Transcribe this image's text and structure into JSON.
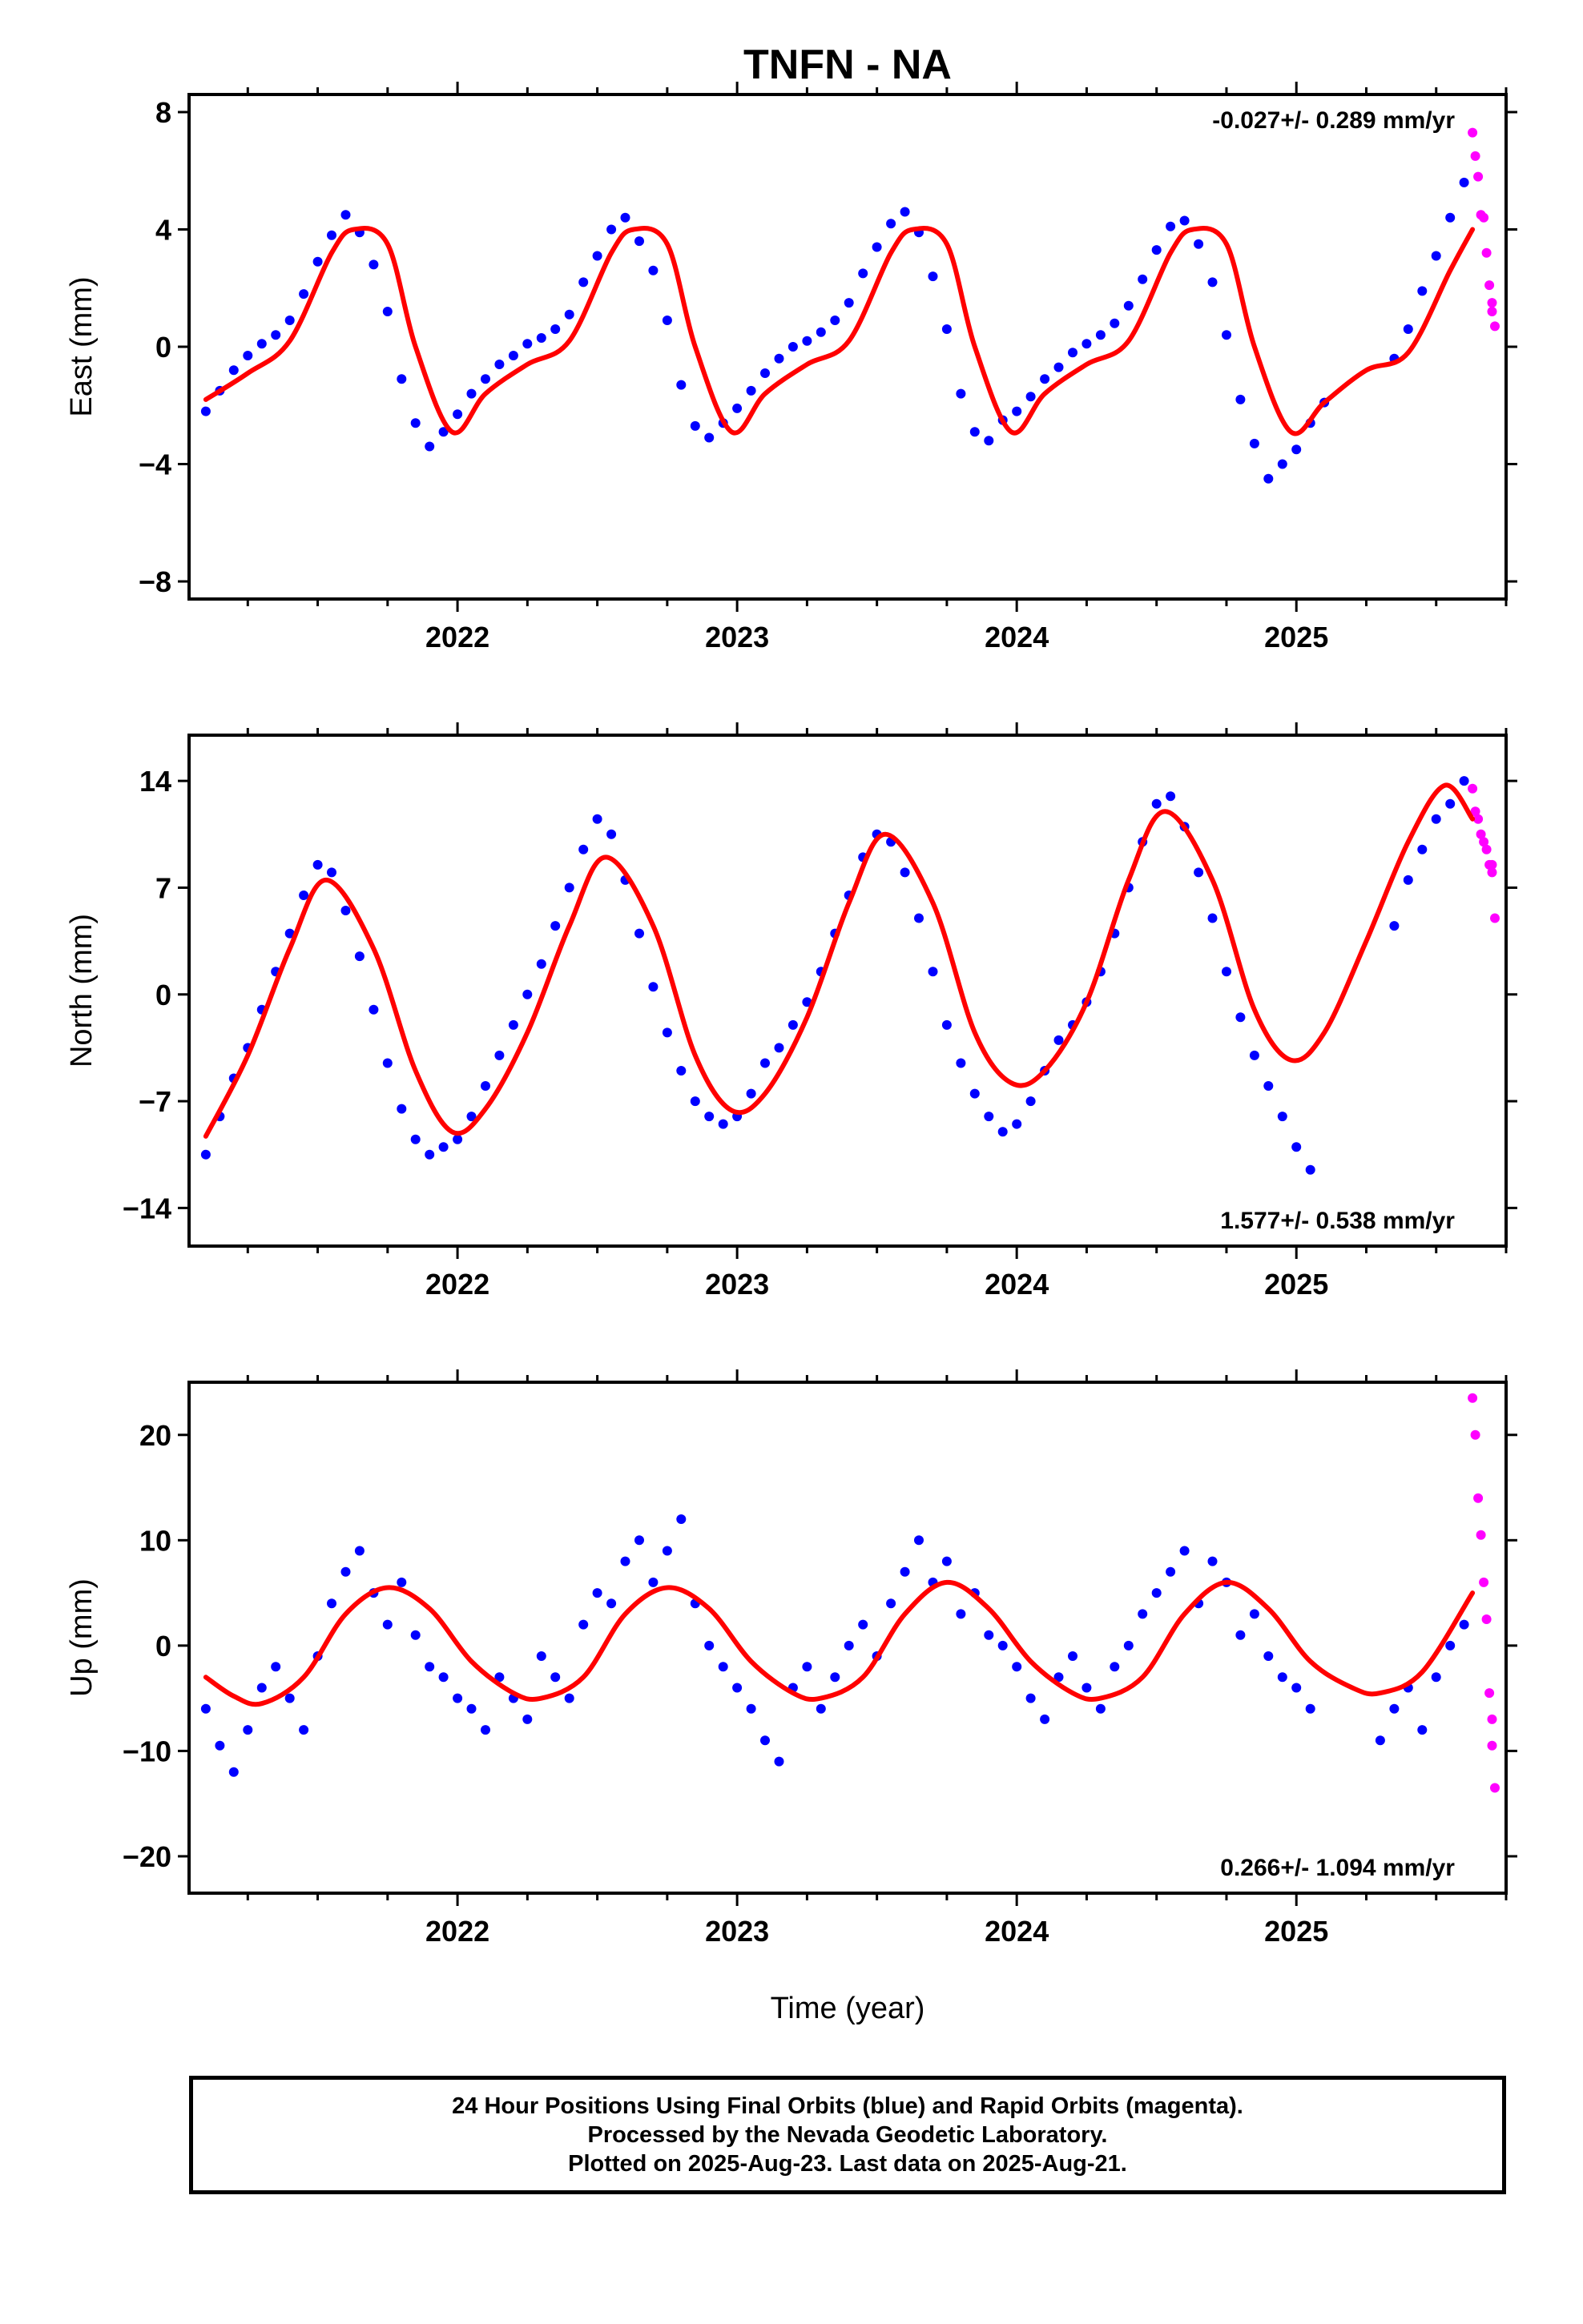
{
  "title": "TNFN - NA",
  "xlabel": "Time (year)",
  "caption": {
    "line1": "24 Hour Positions Using Final Orbits (blue) and Rapid Orbits (magenta).",
    "line2": "Processed by the Nevada Geodetic Laboratory.",
    "line3": "Plotted on 2025-Aug-23. Last data on 2025-Aug-21."
  },
  "colors": {
    "final": "#0000ff",
    "rapid": "#ff00ff",
    "model": "#ff0000",
    "axis": "#000000"
  },
  "chart_data": [
    {
      "type": "scatter",
      "ylabel": "East (mm)",
      "rate": "-0.027+/- 0.289 mm/yr",
      "xlim": [
        2021.04,
        2025.75
      ],
      "ylim": [
        -8.6,
        8.6
      ],
      "yticks": [
        -8,
        -4,
        0,
        4,
        8
      ],
      "ytick_labels": [
        "−8",
        "−4",
        "0",
        "4",
        "8"
      ],
      "xticks": [
        2022,
        2023,
        2024,
        2025
      ],
      "xtick_labels": [
        "2022",
        "2023",
        "2024",
        "2025"
      ],
      "model": {
        "name": "seasonal fit",
        "x": [
          2021.1,
          2021.25,
          2021.4,
          2021.55,
          2021.63,
          2021.75,
          2021.85,
          2021.98,
          2022.1,
          2022.25,
          2022.4,
          2022.55,
          2022.63,
          2022.75,
          2022.85,
          2022.98,
          2023.1,
          2023.25,
          2023.4,
          2023.55,
          2023.63,
          2023.75,
          2023.85,
          2023.98,
          2024.1,
          2024.25,
          2024.4,
          2024.55,
          2024.63,
          2024.75,
          2024.85,
          2024.98,
          2025.1,
          2025.25,
          2025.4,
          2025.55,
          2025.63
        ],
        "y": [
          -1.8,
          -0.9,
          0.2,
          3.2,
          4.0,
          3.5,
          0.0,
          -2.9,
          -1.6,
          -0.6,
          0.2,
          3.2,
          4.0,
          3.5,
          0.0,
          -2.9,
          -1.6,
          -0.6,
          0.2,
          3.2,
          4.0,
          3.5,
          0.0,
          -2.9,
          -1.6,
          -0.6,
          0.2,
          3.2,
          4.0,
          3.5,
          0.0,
          -2.9,
          -1.9,
          -0.8,
          -0.2,
          2.6,
          4.0
        ]
      },
      "final_points": {
        "x": [
          2021.1,
          2021.15,
          2021.2,
          2021.25,
          2021.3,
          2021.35,
          2021.4,
          2021.45,
          2021.5,
          2021.55,
          2021.6,
          2021.65,
          2021.7,
          2021.75,
          2021.8,
          2021.85,
          2021.9,
          2021.95,
          2022.0,
          2022.05,
          2022.1,
          2022.15,
          2022.2,
          2022.25,
          2022.3,
          2022.35,
          2022.4,
          2022.45,
          2022.5,
          2022.55,
          2022.6,
          2022.65,
          2022.7,
          2022.75,
          2022.8,
          2022.85,
          2022.9,
          2022.95,
          2023.0,
          2023.05,
          2023.1,
          2023.15,
          2023.2,
          2023.25,
          2023.3,
          2023.35,
          2023.4,
          2023.45,
          2023.5,
          2023.55,
          2023.6,
          2023.65,
          2023.7,
          2023.75,
          2023.8,
          2023.85,
          2023.9,
          2023.95,
          2024.0,
          2024.05,
          2024.1,
          2024.15,
          2024.2,
          2024.25,
          2024.3,
          2024.35,
          2024.4,
          2024.45,
          2024.5,
          2024.55,
          2024.6,
          2024.65,
          2024.7,
          2024.75,
          2024.8,
          2024.85,
          2024.9,
          2024.95,
          2025.0,
          2025.05,
          2025.1,
          2025.35,
          2025.4,
          2025.45,
          2025.5,
          2025.55,
          2025.6
        ],
        "y": [
          -2.2,
          -1.5,
          -0.8,
          -0.3,
          0.1,
          0.4,
          0.9,
          1.8,
          2.9,
          3.8,
          4.5,
          3.9,
          2.8,
          1.2,
          -1.1,
          -2.6,
          -3.4,
          -2.9,
          -2.3,
          -1.6,
          -1.1,
          -0.6,
          -0.3,
          0.1,
          0.3,
          0.6,
          1.1,
          2.2,
          3.1,
          4.0,
          4.4,
          3.6,
          2.6,
          0.9,
          -1.3,
          -2.7,
          -3.1,
          -2.6,
          -2.1,
          -1.5,
          -0.9,
          -0.4,
          0.0,
          0.2,
          0.5,
          0.9,
          1.5,
          2.5,
          3.4,
          4.2,
          4.6,
          3.9,
          2.4,
          0.6,
          -1.6,
          -2.9,
          -3.2,
          -2.5,
          -2.2,
          -1.7,
          -1.1,
          -0.7,
          -0.2,
          0.1,
          0.4,
          0.8,
          1.4,
          2.3,
          3.3,
          4.1,
          4.3,
          3.5,
          2.2,
          0.4,
          -1.8,
          -3.3,
          -4.5,
          -4.0,
          -3.5,
          -2.6,
          -1.9,
          -0.4,
          0.6,
          1.9,
          3.1,
          4.4,
          5.6
        ]
      },
      "rapid_points": {
        "x": [
          2025.63,
          2025.64,
          2025.65,
          2025.66,
          2025.67,
          2025.68,
          2025.69,
          2025.7,
          2025.7,
          2025.71
        ],
        "y": [
          7.3,
          6.5,
          5.8,
          4.5,
          4.4,
          3.2,
          2.1,
          1.5,
          1.2,
          0.7
        ]
      }
    },
    {
      "type": "scatter",
      "ylabel": "North (mm)",
      "rate": "1.577+/- 0.538 mm/yr",
      "xlim": [
        2021.04,
        2025.75
      ],
      "ylim": [
        -16.5,
        17.0
      ],
      "yticks": [
        -14,
        -7,
        0,
        7,
        14
      ],
      "ytick_labels": [
        "−14",
        "−7",
        "0",
        "7",
        "14"
      ],
      "xticks": [
        2022,
        2023,
        2024,
        2025
      ],
      "xtick_labels": [
        "2022",
        "2023",
        "2024",
        "2025"
      ],
      "model": {
        "name": "seasonal fit",
        "x": [
          2021.1,
          2021.25,
          2021.4,
          2021.53,
          2021.7,
          2021.85,
          2021.98,
          2022.1,
          2022.25,
          2022.4,
          2022.53,
          2022.7,
          2022.85,
          2022.98,
          2023.1,
          2023.25,
          2023.4,
          2023.53,
          2023.7,
          2023.85,
          2023.98,
          2024.1,
          2024.25,
          2024.4,
          2024.53,
          2024.7,
          2024.85,
          2024.98,
          2025.1,
          2025.25,
          2025.4,
          2025.53,
          2025.63
        ],
        "y": [
          -9.3,
          -4.0,
          3.0,
          7.5,
          3.0,
          -5.0,
          -9.0,
          -7.5,
          -2.5,
          4.5,
          9.0,
          4.5,
          -4.0,
          -7.6,
          -6.5,
          -1.5,
          6.0,
          10.5,
          6.0,
          -2.5,
          -5.8,
          -5.0,
          -0.5,
          7.5,
          12.0,
          7.5,
          -1.0,
          -4.3,
          -2.5,
          3.5,
          10.0,
          13.7,
          11.5
        ]
      },
      "final_points": {
        "x": [
          2021.1,
          2021.15,
          2021.2,
          2021.25,
          2021.3,
          2021.35,
          2021.4,
          2021.45,
          2021.5,
          2021.55,
          2021.6,
          2021.65,
          2021.7,
          2021.75,
          2021.8,
          2021.85,
          2021.9,
          2021.95,
          2022.0,
          2022.05,
          2022.1,
          2022.15,
          2022.2,
          2022.25,
          2022.3,
          2022.35,
          2022.4,
          2022.45,
          2022.5,
          2022.55,
          2022.6,
          2022.65,
          2022.7,
          2022.75,
          2022.8,
          2022.85,
          2022.9,
          2022.95,
          2023.0,
          2023.05,
          2023.1,
          2023.15,
          2023.2,
          2023.25,
          2023.3,
          2023.35,
          2023.4,
          2023.45,
          2023.5,
          2023.55,
          2023.6,
          2023.65,
          2023.7,
          2023.75,
          2023.8,
          2023.85,
          2023.9,
          2023.95,
          2024.0,
          2024.05,
          2024.1,
          2024.15,
          2024.2,
          2024.25,
          2024.3,
          2024.35,
          2024.4,
          2024.45,
          2024.5,
          2024.55,
          2024.6,
          2024.65,
          2024.7,
          2024.75,
          2024.8,
          2024.85,
          2024.9,
          2024.95,
          2025.0,
          2025.05,
          2025.35,
          2025.4,
          2025.45,
          2025.5,
          2025.55,
          2025.6
        ],
        "y": [
          -10.5,
          -8.0,
          -5.5,
          -3.5,
          -1.0,
          1.5,
          4.0,
          6.5,
          8.5,
          8.0,
          5.5,
          2.5,
          -1.0,
          -4.5,
          -7.5,
          -9.5,
          -10.5,
          -10.0,
          -9.5,
          -8.0,
          -6.0,
          -4.0,
          -2.0,
          0.0,
          2.0,
          4.5,
          7.0,
          9.5,
          11.5,
          10.5,
          7.5,
          4.0,
          0.5,
          -2.5,
          -5.0,
          -7.0,
          -8.0,
          -8.5,
          -8.0,
          -6.5,
          -4.5,
          -3.5,
          -2.0,
          -0.5,
          1.5,
          4.0,
          6.5,
          9.0,
          10.5,
          10.0,
          8.0,
          5.0,
          1.5,
          -2.0,
          -4.5,
          -6.5,
          -8.0,
          -9.0,
          -8.5,
          -7.0,
          -5.0,
          -3.0,
          -2.0,
          -0.5,
          1.5,
          4.0,
          7.0,
          10.0,
          12.5,
          13.0,
          11.0,
          8.0,
          5.0,
          1.5,
          -1.5,
          -4.0,
          -6.0,
          -8.0,
          -10.0,
          -11.5,
          4.5,
          7.5,
          9.5,
          11.5,
          12.5,
          14.0
        ]
      },
      "rapid_points": {
        "x": [
          2025.63,
          2025.64,
          2025.65,
          2025.66,
          2025.67,
          2025.68,
          2025.69,
          2025.7,
          2025.7,
          2025.71
        ],
        "y": [
          13.5,
          12.0,
          11.5,
          10.5,
          10.0,
          9.5,
          8.5,
          8.5,
          8.0,
          5.0
        ]
      }
    },
    {
      "type": "scatter",
      "ylabel": "Up (mm)",
      "rate": "0.266+/- 1.094 mm/yr",
      "xlim": [
        2021.04,
        2025.75
      ],
      "ylim": [
        -23.5,
        25.0
      ],
      "yticks": [
        -20,
        -10,
        0,
        10,
        20
      ],
      "ytick_labels": [
        "−20",
        "−10",
        "0",
        "10",
        "20"
      ],
      "xticks": [
        2022,
        2023,
        2024,
        2025
      ],
      "xtick_labels": [
        "2022",
        "2023",
        "2024",
        "2025"
      ],
      "model": {
        "name": "seasonal fit",
        "x": [
          2021.1,
          2021.2,
          2021.3,
          2021.45,
          2021.6,
          2021.75,
          2021.9,
          2022.05,
          2022.2,
          2022.3,
          2022.45,
          2022.6,
          2022.75,
          2022.9,
          2023.05,
          2023.2,
          2023.3,
          2023.45,
          2023.6,
          2023.75,
          2023.9,
          2024.05,
          2024.2,
          2024.3,
          2024.45,
          2024.6,
          2024.75,
          2024.9,
          2025.05,
          2025.2,
          2025.3,
          2025.45,
          2025.63
        ],
        "y": [
          -3.0,
          -4.8,
          -5.5,
          -3.0,
          3.0,
          5.5,
          3.5,
          -1.5,
          -4.5,
          -5.0,
          -3.0,
          3.0,
          5.5,
          3.5,
          -1.5,
          -4.5,
          -5.0,
          -3.0,
          3.0,
          6.0,
          3.5,
          -1.5,
          -4.5,
          -5.0,
          -3.0,
          3.0,
          6.0,
          3.5,
          -1.5,
          -4.0,
          -4.5,
          -2.5,
          5.0
        ]
      },
      "final_points": {
        "x": [
          2021.1,
          2021.15,
          2021.2,
          2021.25,
          2021.3,
          2021.35,
          2021.4,
          2021.45,
          2021.5,
          2021.55,
          2021.6,
          2021.65,
          2021.7,
          2021.75,
          2021.8,
          2021.85,
          2021.9,
          2021.95,
          2022.0,
          2022.05,
          2022.1,
          2022.15,
          2022.2,
          2022.25,
          2022.3,
          2022.35,
          2022.4,
          2022.45,
          2022.5,
          2022.55,
          2022.6,
          2022.65,
          2022.7,
          2022.75,
          2022.8,
          2022.85,
          2022.9,
          2022.95,
          2023.0,
          2023.05,
          2023.1,
          2023.15,
          2023.2,
          2023.25,
          2023.3,
          2023.35,
          2023.4,
          2023.45,
          2023.5,
          2023.55,
          2023.6,
          2023.65,
          2023.7,
          2023.75,
          2023.8,
          2023.85,
          2023.9,
          2023.95,
          2024.0,
          2024.05,
          2024.1,
          2024.15,
          2024.2,
          2024.25,
          2024.3,
          2024.35,
          2024.4,
          2024.45,
          2024.5,
          2024.55,
          2024.6,
          2024.65,
          2024.7,
          2024.75,
          2024.8,
          2024.85,
          2024.9,
          2024.95,
          2025.0,
          2025.05,
          2025.3,
          2025.35,
          2025.4,
          2025.45,
          2025.5,
          2025.55,
          2025.6
        ],
        "y": [
          -6.0,
          -9.5,
          -12.0,
          -8.0,
          -4.0,
          -2.0,
          -5.0,
          -8.0,
          -1.0,
          4.0,
          7.0,
          9.0,
          5.0,
          2.0,
          6.0,
          1.0,
          -2.0,
          -3.0,
          -5.0,
          -6.0,
          -8.0,
          -3.0,
          -5.0,
          -7.0,
          -1.0,
          -3.0,
          -5.0,
          2.0,
          5.0,
          4.0,
          8.0,
          10.0,
          6.0,
          9.0,
          12.0,
          4.0,
          0.0,
          -2.0,
          -4.0,
          -6.0,
          -9.0,
          -11.0,
          -4.0,
          -2.0,
          -6.0,
          -3.0,
          0.0,
          2.0,
          -1.0,
          4.0,
          7.0,
          10.0,
          6.0,
          8.0,
          3.0,
          5.0,
          1.0,
          0.0,
          -2.0,
          -5.0,
          -7.0,
          -3.0,
          -1.0,
          -4.0,
          -6.0,
          -2.0,
          0.0,
          3.0,
          5.0,
          7.0,
          9.0,
          4.0,
          8.0,
          6.0,
          1.0,
          3.0,
          -1.0,
          -3.0,
          -4.0,
          -6.0,
          -9.0,
          -6.0,
          -4.0,
          -8.0,
          -3.0,
          0.0,
          2.0
        ]
      },
      "rapid_points": {
        "x": [
          2025.63,
          2025.64,
          2025.65,
          2025.66,
          2025.67,
          2025.68,
          2025.69,
          2025.7,
          2025.7,
          2025.71
        ],
        "y": [
          23.5,
          20.0,
          14.0,
          10.5,
          6.0,
          2.5,
          -4.5,
          -7.0,
          -9.5,
          -13.5
        ]
      }
    }
  ]
}
